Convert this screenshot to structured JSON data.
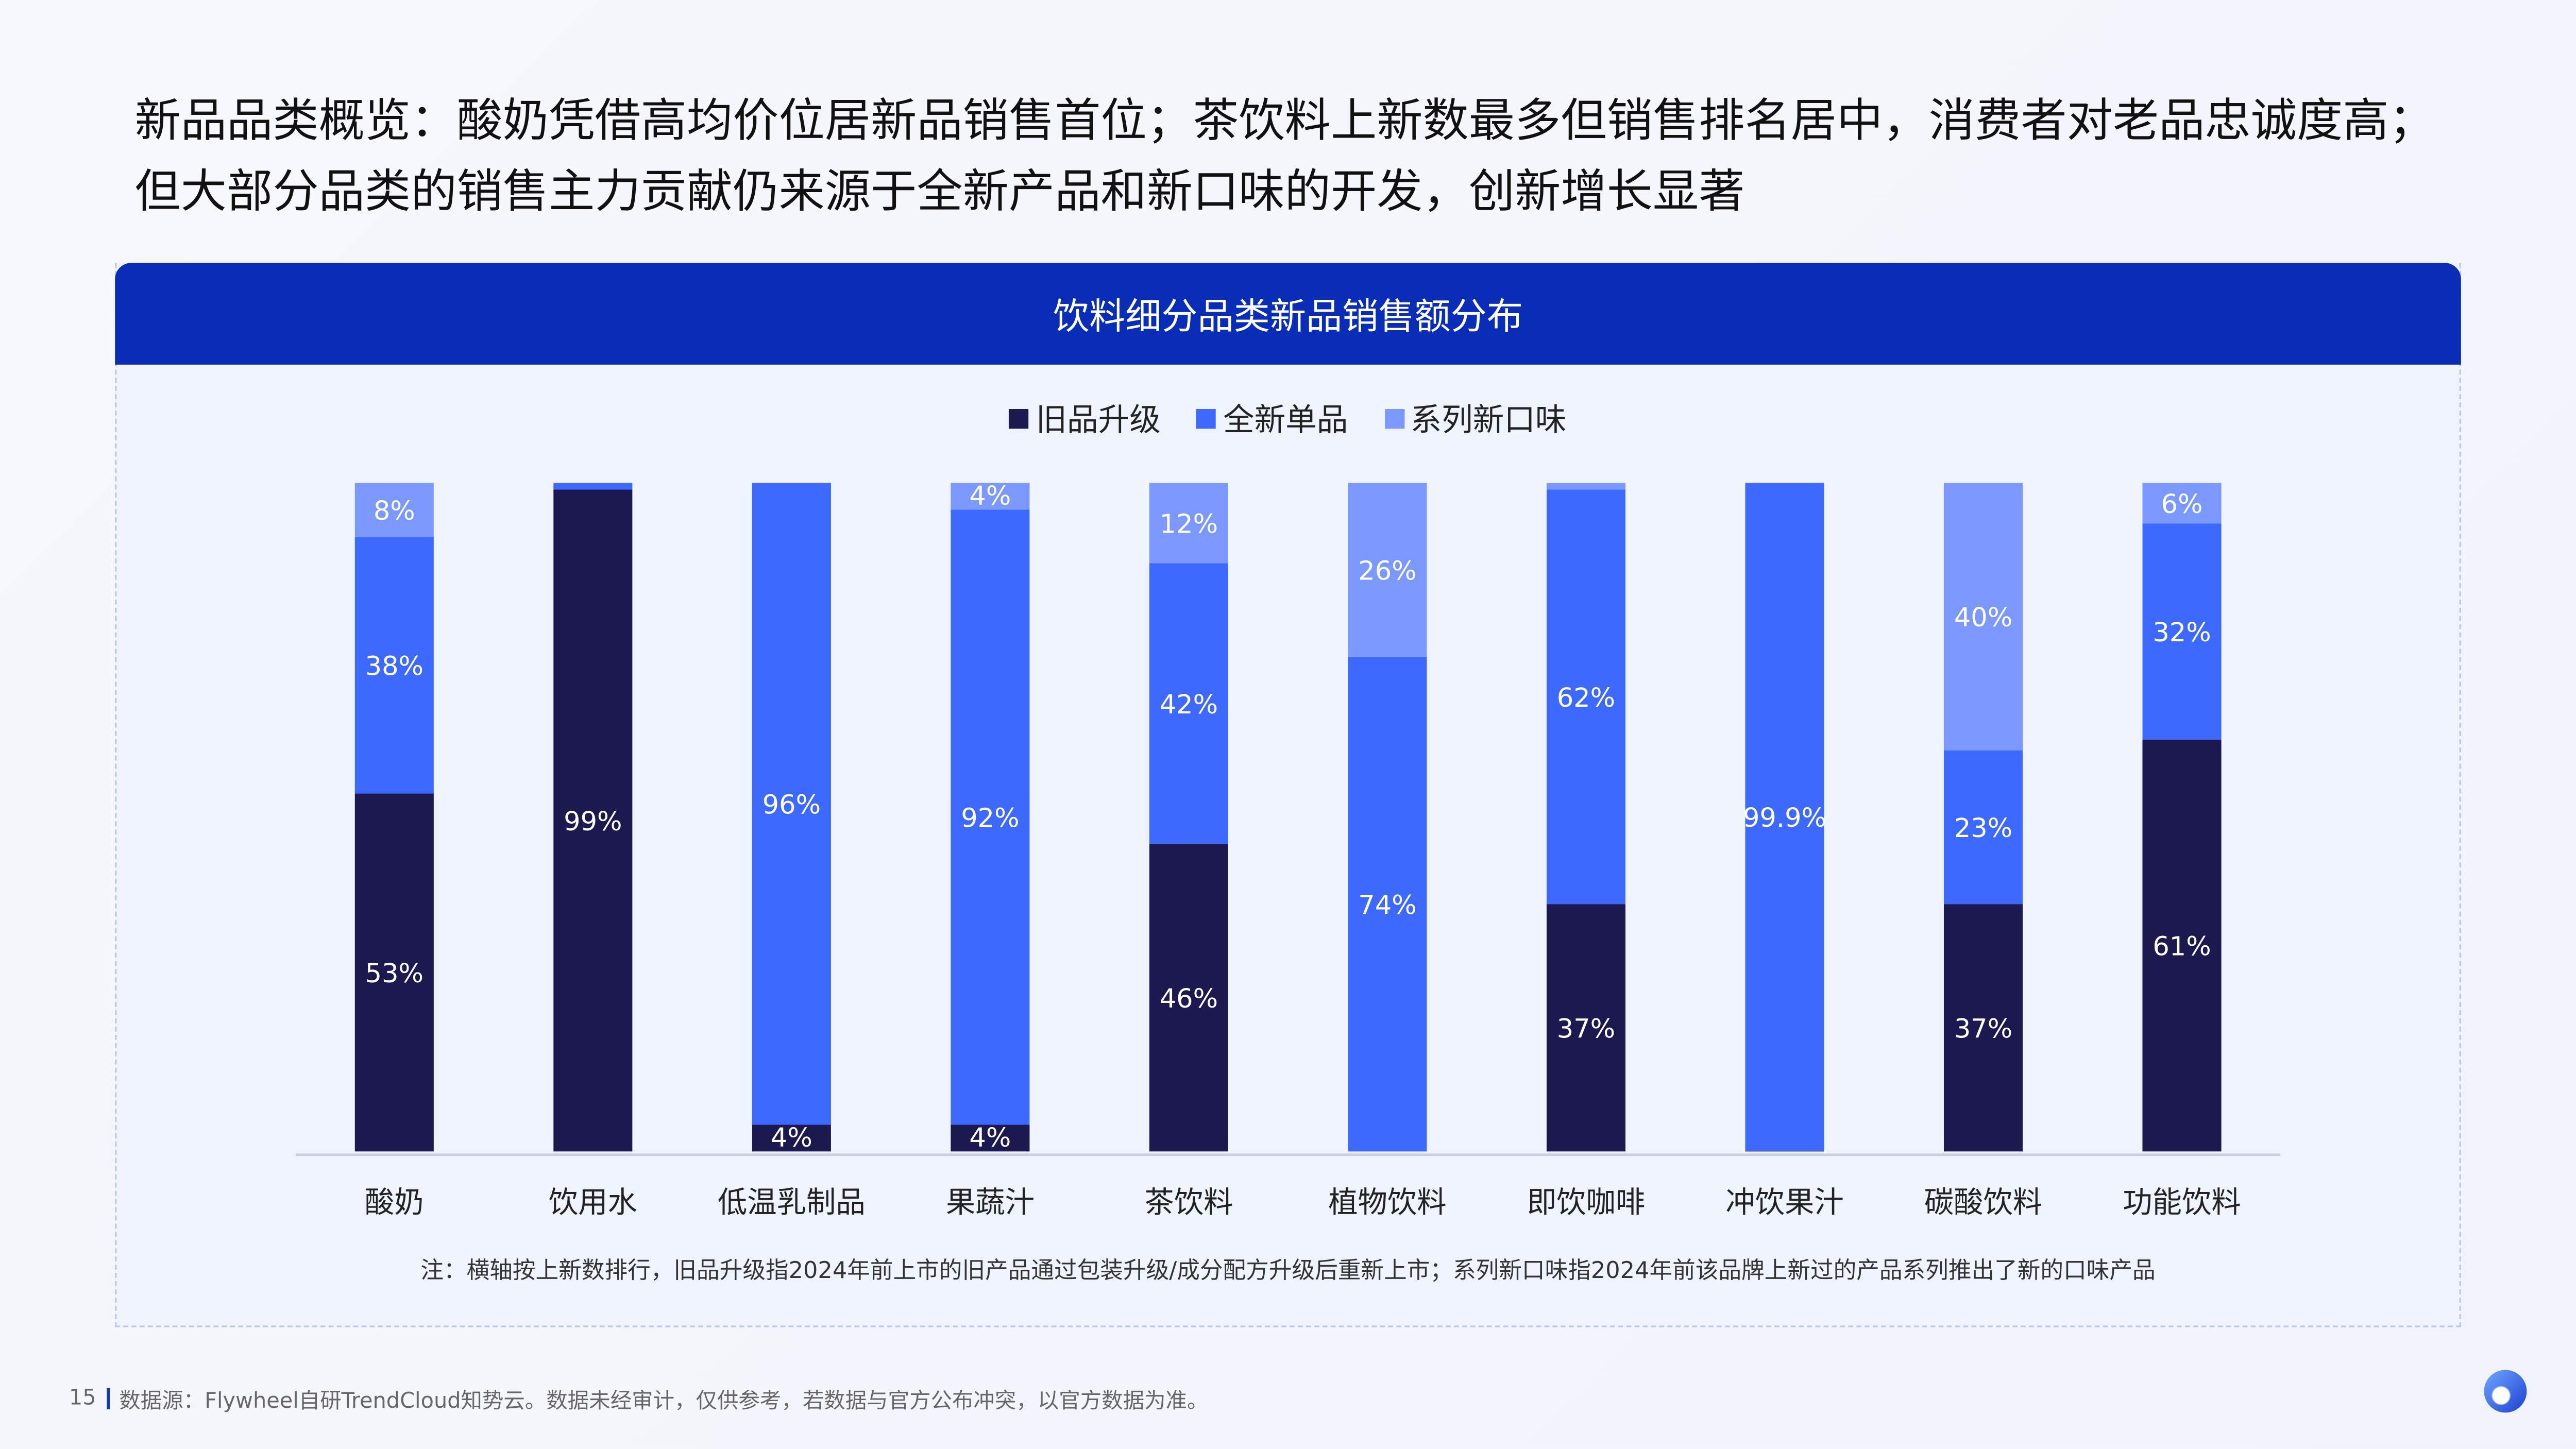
{
  "page": {
    "title": "新品品类概览：酸奶凭借高均价位居新品销售首位；茶饮料上新数最多但销售排名居中，消费者对老品忠诚度高；但大部分品类的销售主力贡献仍来源于全新产品和新口味的开发，创新增长显著",
    "page_number": "15",
    "source": "数据源：Flywheel自研TrendCloud知势云。数据未经审计，仅供参考，若数据与官方公布冲突，以官方数据为准。",
    "note": "注：横轴按上新数排行，旧品升级指2024年前上市的旧产品通过包装升级/成分配方升级后重新上市；系列新口味指2024年前该品牌上新过的产品系列推出了新的口味产品",
    "watermark": "Flywheel"
  },
  "colors": {
    "header": "#0a2db8",
    "old_upgrade": "#1c1850",
    "brand_new": "#3d69ff",
    "new_flavor": "#7b98ff"
  },
  "chart_data": {
    "type": "bar",
    "stacked": true,
    "title": "饮料细分品类新品销售额分布",
    "legend_position": "top",
    "ylim": [
      0,
      100
    ],
    "unit": "%",
    "categories": [
      "酸奶",
      "饮用水",
      "低温乳制品",
      "果蔬汁",
      "茶饮料",
      "植物饮料",
      "即饮咖啡",
      "冲饮果汁",
      "碳酸饮料",
      "功能饮料"
    ],
    "series": [
      {
        "name": "旧品升级",
        "values": [
          53,
          99,
          4,
          4,
          46,
          0,
          37,
          0.1,
          37,
          61
        ],
        "labels": [
          "53%",
          "99%",
          "4%",
          "4%",
          "46%",
          null,
          "37%",
          null,
          "37%",
          "61%"
        ]
      },
      {
        "name": "全新单品",
        "values": [
          38,
          1,
          96,
          92,
          42,
          74,
          62,
          99.9,
          23,
          32
        ],
        "labels": [
          "38%",
          null,
          "96%",
          "92%",
          "42%",
          "74%",
          "62%",
          "99.9%",
          "23%",
          "32%"
        ]
      },
      {
        "name": "系列新口味",
        "values": [
          8,
          0,
          0,
          4,
          12,
          26,
          1,
          0,
          40,
          6
        ],
        "labels": [
          "8%",
          null,
          null,
          "4%",
          "12%",
          "26%",
          null,
          null,
          "40%",
          "6%"
        ]
      }
    ]
  }
}
